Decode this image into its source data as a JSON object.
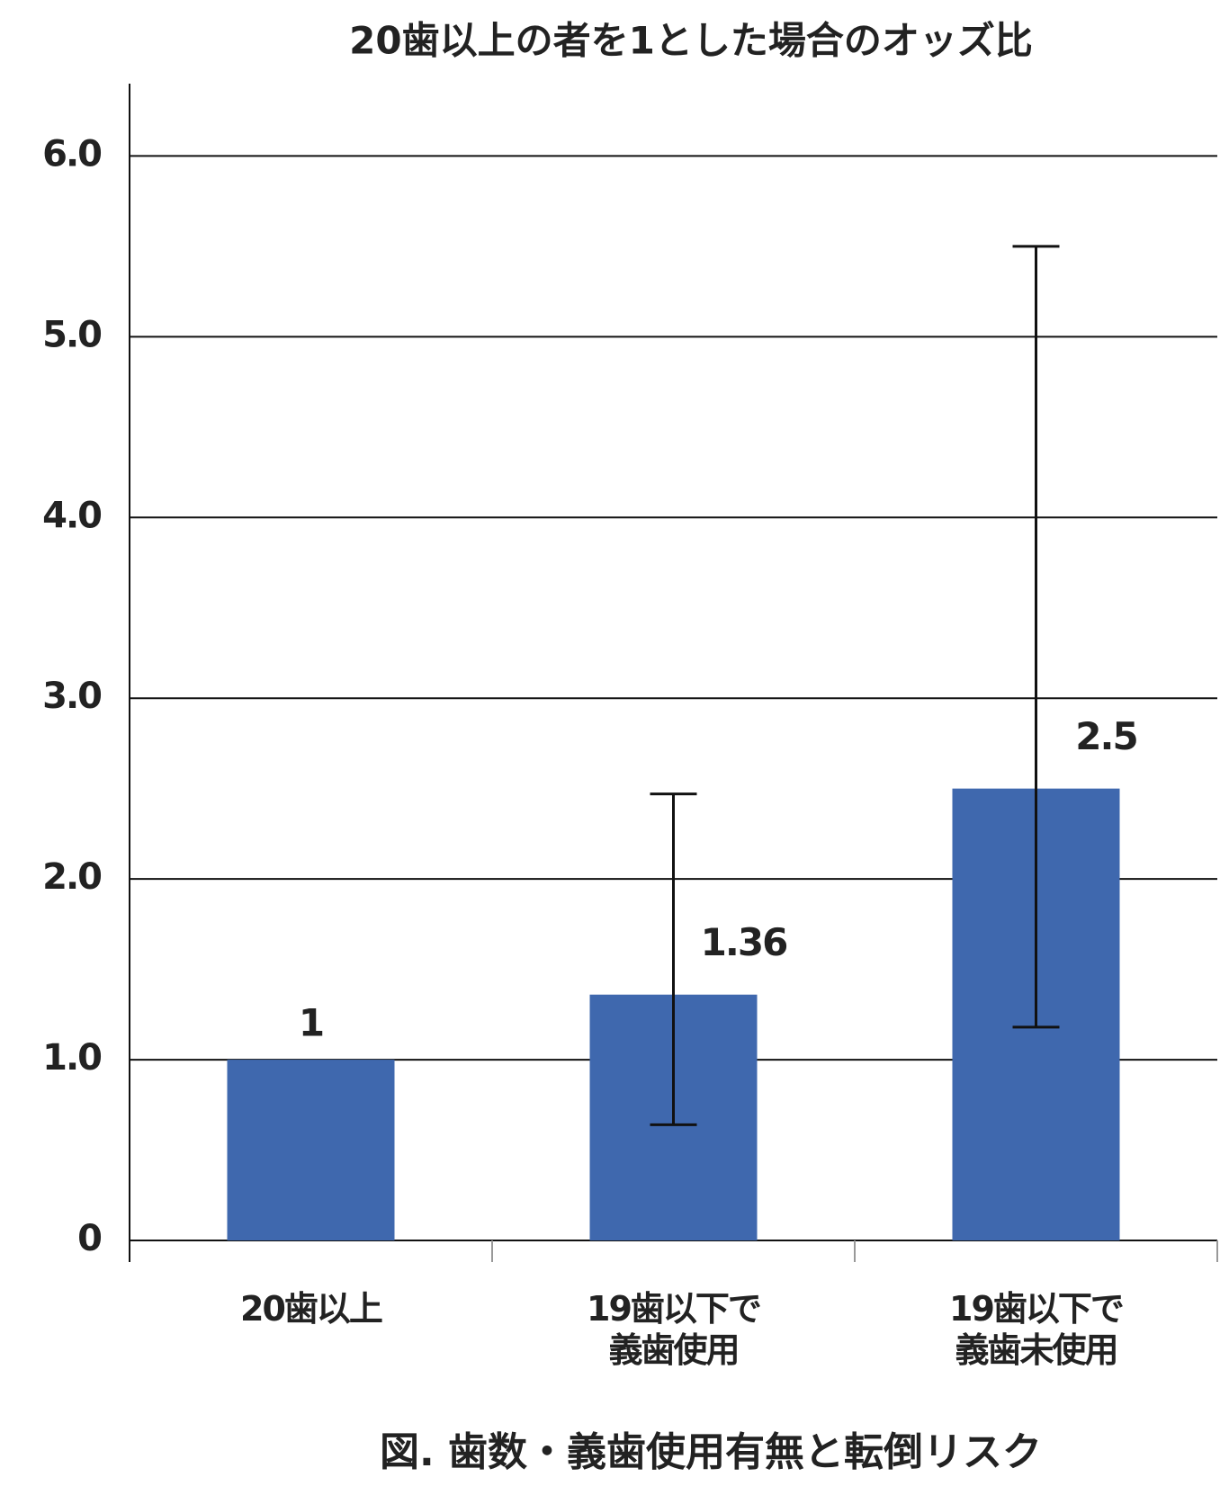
{
  "chart_data": {
    "type": "bar",
    "title": "20歯以上の者を1とした場合のオッズ比",
    "caption": "図. 歯数・義歯使用有無と転倒リスク",
    "categories": [
      "20歯以上",
      "19歯以下で\n義歯使用",
      "19歯以下で\n義歯未使用"
    ],
    "values": [
      1,
      1.36,
      2.5
    ],
    "value_labels": [
      "1",
      "1.36",
      "2.5"
    ],
    "ci_low": [
      null,
      0.64,
      1.18
    ],
    "ci_high": [
      null,
      2.47,
      5.5
    ],
    "color": "#3f68ae",
    "ylim": [
      0,
      6.4
    ],
    "yticks": [
      0,
      {
        "value": 1,
        "label": "1.0"
      },
      {
        "value": 2,
        "label": "2.0"
      },
      {
        "value": 3,
        "label": "3.0"
      },
      {
        "value": 4,
        "label": "4.0"
      },
      {
        "value": 5,
        "label": "5.0"
      },
      {
        "value": 6,
        "label": "6.0"
      }
    ],
    "grid": true
  }
}
